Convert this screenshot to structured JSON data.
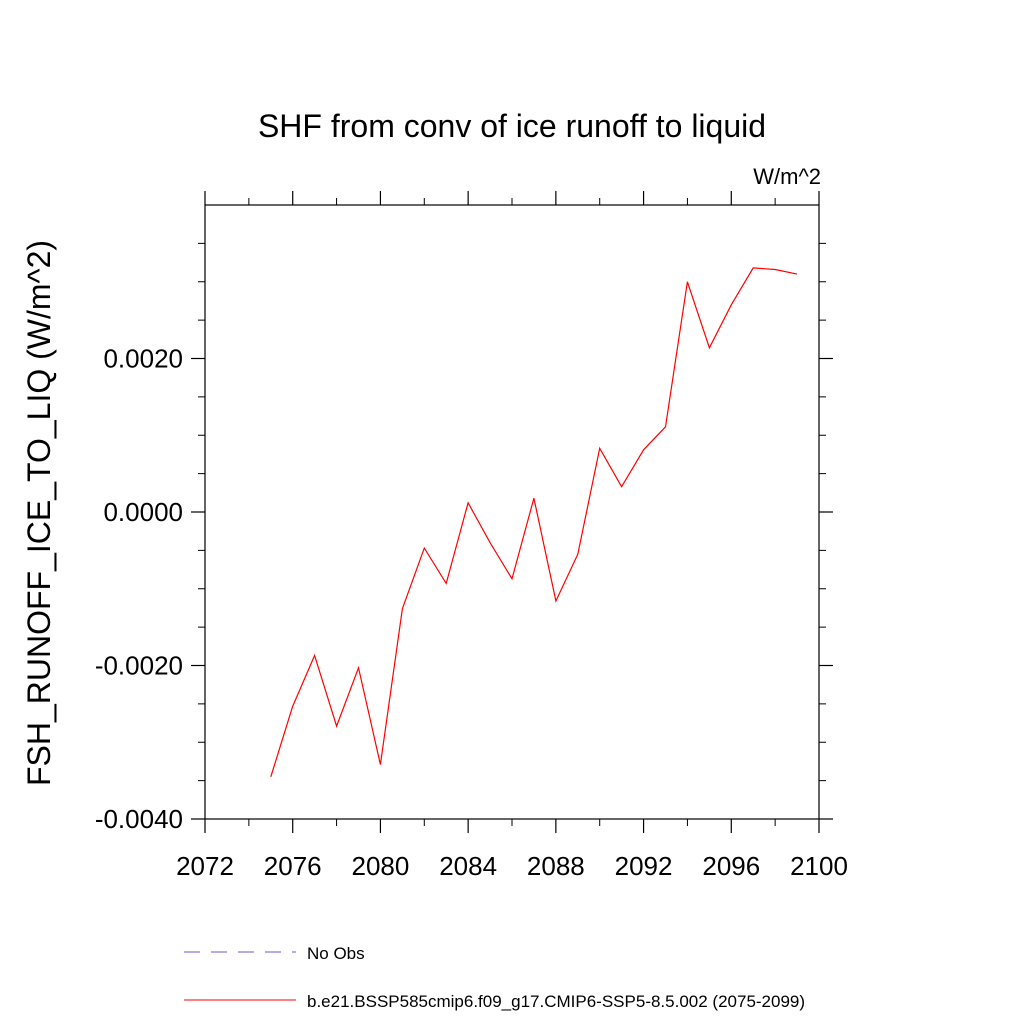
{
  "chart_data": {
    "type": "line",
    "title": "SHF from conv of ice runoff to liquid",
    "units_label": "W/m^2",
    "ylabel": "FSH_RUNOFF_ICE_TO_LIQ  (W/m^2)",
    "xlabel": "",
    "xlim": [
      2072,
      2100
    ],
    "ylim": [
      -0.004,
      0.004
    ],
    "x_ticks": [
      2072,
      2076,
      2080,
      2084,
      2088,
      2092,
      2096,
      2100
    ],
    "x_tick_labels": [
      "2072",
      "2076",
      "2080",
      "2084",
      "2088",
      "2092",
      "2096",
      "2100"
    ],
    "y_ticks": [
      -0.004,
      -0.002,
      0.0,
      0.002
    ],
    "y_tick_labels": [
      "-0.0040",
      "-0.0020",
      "0.0000",
      "0.0020"
    ],
    "grid": false,
    "legend_position": "bottom",
    "series": [
      {
        "name": "b.e21.BSSP585cmip6.f09_g17.CMIP6-SSP5-8.5.002 (2075-2099)",
        "color": "#ff0000",
        "style": "solid",
        "x": [
          2075,
          2076,
          2077,
          2078,
          2079,
          2080,
          2081,
          2082,
          2083,
          2084,
          2085,
          2086,
          2087,
          2088,
          2089,
          2090,
          2091,
          2092,
          2093,
          2094,
          2095,
          2096,
          2097,
          2098,
          2099
        ],
        "y": [
          -0.00345,
          -0.00253,
          -0.00187,
          -0.00279,
          -0.00203,
          -0.00329,
          -0.00126,
          -0.00047,
          -0.00093,
          0.00012,
          -0.0004,
          -0.00087,
          0.00018,
          -0.00116,
          -0.00055,
          0.00083,
          0.00033,
          0.00081,
          0.00111,
          0.003,
          0.00214,
          0.0027,
          0.00318,
          0.00316,
          0.0031
        ]
      }
    ],
    "legend": [
      {
        "label": "No Obs",
        "color": "#6a5acd",
        "style": "dashed"
      },
      {
        "label": "b.e21.BSSP585cmip6.f09_g17.CMIP6-SSP5-8.5.002 (2075-2099)",
        "color": "#ff0000",
        "style": "solid"
      }
    ]
  }
}
